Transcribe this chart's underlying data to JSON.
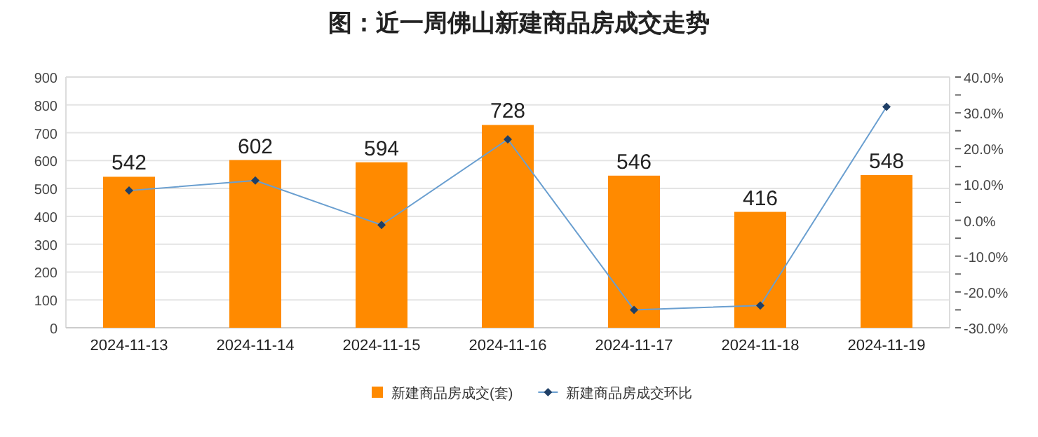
{
  "chart_data": {
    "type": "bar",
    "title": "图：近一周佛山新建商品房成交走势",
    "categories": [
      "2024-11-13",
      "2024-11-14",
      "2024-11-15",
      "2024-11-16",
      "2024-11-17",
      "2024-11-18",
      "2024-11-19"
    ],
    "series": [
      {
        "name": "新建商品房成交(套)",
        "color": "#ff8a00",
        "values": [
          542,
          602,
          594,
          728,
          546,
          416,
          548
        ],
        "value_labels": [
          "542",
          "602",
          "594",
          "728",
          "546",
          "416",
          "548"
        ]
      },
      {
        "name": "新建商品房成交环比",
        "type": "line",
        "axis": "y2",
        "color": "#6a9fd0",
        "marker": "diamond",
        "values": [
          8.3,
          11.1,
          -1.3,
          22.6,
          -25.0,
          -23.8,
          31.7
        ]
      }
    ],
    "ylim": [
      0,
      900
    ],
    "yticks": [
      0,
      100,
      200,
      300,
      400,
      500,
      600,
      700,
      800,
      900
    ],
    "y2lim": [
      -30,
      40
    ],
    "y2ticks": [
      {
        "value": -30,
        "label": "-30.0%"
      },
      {
        "value": -25,
        "label": null
      },
      {
        "value": -20,
        "label": "-20.0%"
      },
      {
        "value": -15,
        "label": null
      },
      {
        "value": -10,
        "label": "-10.0%"
      },
      {
        "value": -5,
        "label": null
      },
      {
        "value": 0,
        "label": "0.0%"
      },
      {
        "value": 5,
        "label": null
      },
      {
        "value": 10,
        "label": "10.0%"
      },
      {
        "value": 15,
        "label": null
      },
      {
        "value": 20,
        "label": "20.0%"
      },
      {
        "value": 25,
        "label": null
      },
      {
        "value": 30,
        "label": "30.0%"
      },
      {
        "value": 35,
        "label": null
      },
      {
        "value": 40,
        "label": "40.0%"
      }
    ],
    "grid": "y",
    "legend": "bottom"
  }
}
